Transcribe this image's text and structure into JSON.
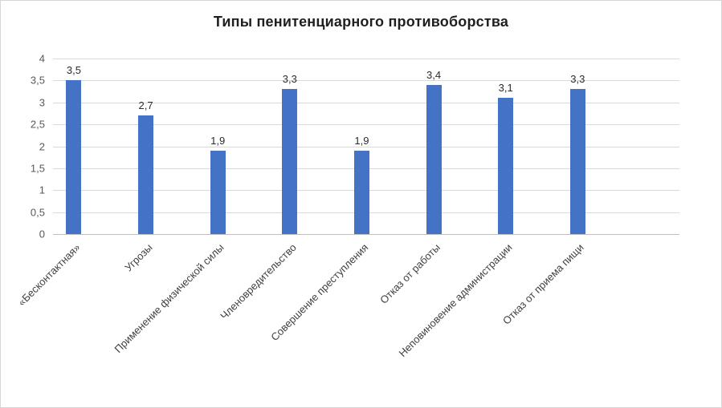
{
  "title": "Типы пенитенциарного противоборства",
  "chart_data": {
    "type": "bar",
    "title": "Типы пенитенциарного противоборства",
    "categories": [
      "«Бесконтактная»",
      "Угрозы",
      "Применение физической силы",
      "Членовредительство",
      "Совершение преступления",
      "Отказ от работы",
      "Неповиновение администрации",
      "Отказ от приема пищи"
    ],
    "values": [
      3.5,
      2.7,
      1.9,
      3.3,
      1.9,
      3.4,
      3.1,
      3.3
    ],
    "value_labels": [
      "3,5",
      "2,7",
      "1,9",
      "3,3",
      "1,9",
      "3,4",
      "3,1",
      "3,3"
    ],
    "xlabel": "",
    "ylabel": "",
    "ylim": [
      0,
      4
    ],
    "y_ticks": [
      0,
      0.5,
      1,
      1.5,
      2,
      2.5,
      3,
      3.5,
      4
    ],
    "y_tick_labels": [
      "0",
      "0,5",
      "1",
      "1,5",
      "2",
      "2,5",
      "3",
      "3,5",
      "4"
    ],
    "grid": true,
    "legend": "none",
    "bar_color": "#4472c4",
    "gridline_color": "#d9d9d9"
  }
}
